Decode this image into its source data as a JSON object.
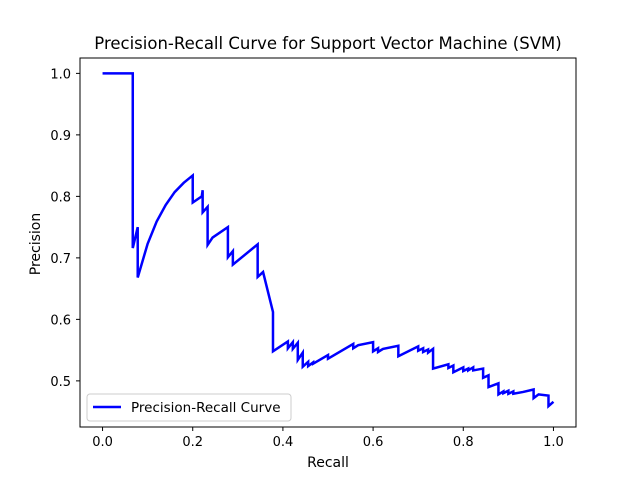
{
  "chart_data": {
    "type": "line",
    "title": "Precision-Recall Curve for Support Vector Machine (SVM)",
    "xlabel": "Recall",
    "ylabel": "Precision",
    "xlim": [
      -0.05,
      1.05
    ],
    "ylim": [
      0.425,
      1.025
    ],
    "xticks": [
      0.0,
      0.2,
      0.4,
      0.6,
      0.8,
      1.0
    ],
    "xtick_labels": [
      "0.0",
      "0.2",
      "0.4",
      "0.6",
      "0.8",
      "1.0"
    ],
    "yticks": [
      0.5,
      0.6,
      0.7,
      0.8,
      0.9,
      1.0
    ],
    "ytick_labels": [
      "0.5",
      "0.6",
      "0.7",
      "0.8",
      "0.9",
      "1.0"
    ],
    "grid": false,
    "legend_position": "lower-left",
    "series": [
      {
        "name": "Precision-Recall Curve",
        "color": "#0000ff",
        "x": [
          0.0,
          0.067,
          0.067,
          0.078,
          0.078,
          0.1,
          0.12,
          0.14,
          0.16,
          0.18,
          0.2,
          0.2,
          0.22,
          0.222,
          0.222,
          0.233,
          0.233,
          0.244,
          0.244,
          0.278,
          0.278,
          0.289,
          0.289,
          0.344,
          0.344,
          0.356,
          0.356,
          0.378,
          0.378,
          0.411,
          0.411,
          0.422,
          0.422,
          0.433,
          0.433,
          0.444,
          0.444,
          0.456,
          0.456,
          0.467,
          0.467,
          0.5,
          0.5,
          0.556,
          0.556,
          0.567,
          0.567,
          0.6,
          0.6,
          0.611,
          0.611,
          0.622,
          0.622,
          0.656,
          0.656,
          0.7,
          0.7,
          0.711,
          0.711,
          0.722,
          0.722,
          0.733,
          0.733,
          0.767,
          0.767,
          0.778,
          0.778,
          0.8,
          0.8,
          0.811,
          0.811,
          0.822,
          0.822,
          0.844,
          0.844,
          0.856,
          0.856,
          0.878,
          0.878,
          0.889,
          0.889,
          0.9,
          0.9,
          0.911,
          0.911,
          0.933,
          0.933,
          0.956,
          0.956,
          0.967,
          0.967,
          0.989,
          0.989,
          1.0
        ],
        "y": [
          1.0,
          1.0,
          0.716,
          0.75,
          0.668,
          0.723,
          0.759,
          0.786,
          0.807,
          0.822,
          0.834,
          0.79,
          0.8,
          0.81,
          0.774,
          0.783,
          0.721,
          0.733,
          0.733,
          0.75,
          0.701,
          0.711,
          0.689,
          0.722,
          0.669,
          0.677,
          0.677,
          0.612,
          0.548,
          0.564,
          0.553,
          0.563,
          0.552,
          0.562,
          0.534,
          0.546,
          0.523,
          0.531,
          0.524,
          0.53,
          0.528,
          0.542,
          0.536,
          0.56,
          0.553,
          0.558,
          0.558,
          0.563,
          0.548,
          0.553,
          0.547,
          0.552,
          0.552,
          0.557,
          0.54,
          0.556,
          0.549,
          0.553,
          0.547,
          0.551,
          0.546,
          0.552,
          0.52,
          0.527,
          0.521,
          0.525,
          0.514,
          0.522,
          0.516,
          0.52,
          0.517,
          0.522,
          0.517,
          0.52,
          0.505,
          0.509,
          0.49,
          0.496,
          0.478,
          0.483,
          0.48,
          0.484,
          0.479,
          0.483,
          0.479,
          0.482,
          0.482,
          0.486,
          0.472,
          0.478,
          0.478,
          0.476,
          0.459,
          0.466
        ]
      }
    ]
  }
}
